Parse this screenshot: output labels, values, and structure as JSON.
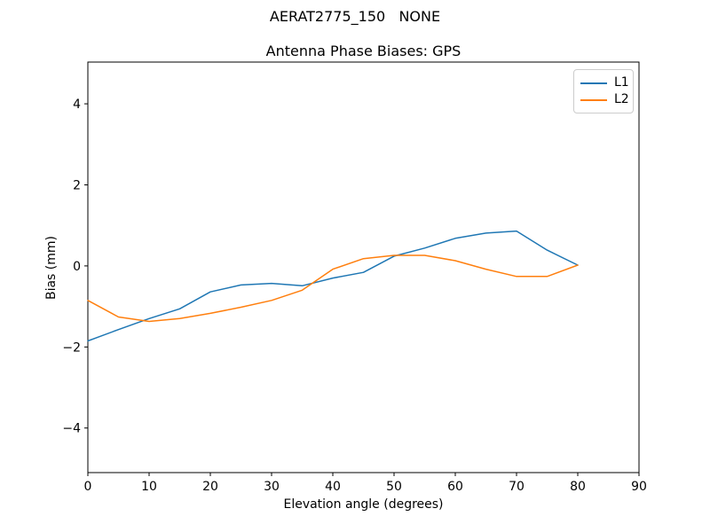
{
  "figure": {
    "suptitle": "AERAT2775_150   NONE"
  },
  "chart_data": {
    "type": "line",
    "title": "Antenna Phase Biases: GPS",
    "xlabel": "Elevation angle (degrees)",
    "ylabel": "Bias (mm)",
    "xlim": [
      0,
      90
    ],
    "ylim": [
      -5.1,
      5.03
    ],
    "xticks": [
      0,
      10,
      20,
      30,
      40,
      50,
      60,
      70,
      80,
      90
    ],
    "yticks": [
      -4,
      -2,
      0,
      2,
      4
    ],
    "grid": false,
    "background": "#ffffff",
    "axis_color": "#000000",
    "legend": {
      "position": "upper right",
      "entries": [
        "L1",
        "L2"
      ]
    },
    "x": [
      0,
      5,
      10,
      15,
      20,
      25,
      30,
      35,
      40,
      45,
      50,
      55,
      60,
      65,
      70,
      75,
      80
    ],
    "series": [
      {
        "name": "L1",
        "color": "#1f77b4",
        "values": [
          -1.85,
          -1.57,
          -1.3,
          -1.06,
          -0.64,
          -0.47,
          -0.43,
          -0.49,
          -0.3,
          -0.16,
          0.24,
          0.44,
          0.68,
          0.81,
          0.86,
          0.39,
          0.02
        ]
      },
      {
        "name": "L2",
        "color": "#ff7f0e",
        "values": [
          -0.85,
          -1.26,
          -1.37,
          -1.3,
          -1.17,
          -1.02,
          -0.85,
          -0.6,
          -0.08,
          0.18,
          0.26,
          0.26,
          0.13,
          -0.08,
          -0.26,
          -0.26,
          0.02
        ]
      }
    ]
  }
}
